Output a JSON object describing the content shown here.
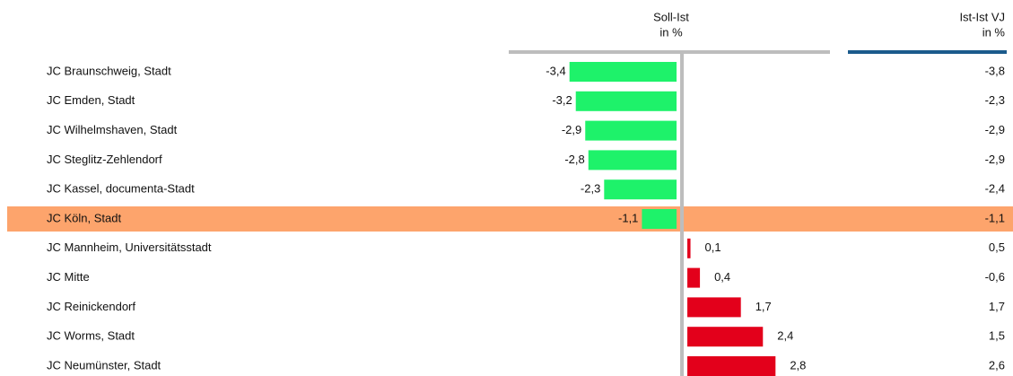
{
  "chart_data": {
    "type": "bar",
    "orientation": "horizontal",
    "categories": [
      "JC Braunschweig, Stadt",
      "JC Emden, Stadt",
      "JC Wilhelmshaven, Stadt",
      "JC Steglitz-Zehlendorf",
      "JC Kassel, documenta-Stadt",
      "JC Köln, Stadt",
      "JC Mannheim, Universitätsstadt",
      "JC Mitte",
      "JC Reinickendorf",
      "JC Worms, Stadt",
      "JC Neumünster, Stadt"
    ],
    "series": [
      {
        "name": [
          "Soll-Ist",
          "in %"
        ],
        "values": [
          -3.4,
          -3.2,
          -2.9,
          -2.8,
          -2.3,
          -1.1,
          0.1,
          0.4,
          1.7,
          2.4,
          2.8
        ],
        "value_labels": [
          "-3,4",
          "-3,2",
          "-2,9",
          "-2,8",
          "-2,3",
          "-1,1",
          "0,1",
          "0,4",
          "1,7",
          "2,4",
          "2,8"
        ],
        "colors": {
          "negative": "#1ef26a",
          "positive": "#e3001b"
        },
        "header_color": "#bdbdbd"
      },
      {
        "name": [
          "Ist-Ist VJ",
          "in %"
        ],
        "values": [
          -3.8,
          -2.3,
          -2.9,
          -2.9,
          -2.4,
          -1.1,
          0.5,
          -0.6,
          1.7,
          1.5,
          2.6
        ],
        "value_labels": [
          "-3,8",
          "-2,3",
          "-2,9",
          "-2,9",
          "-2,4",
          "-1,1",
          "0,5",
          "-0,6",
          "1,7",
          "1,5",
          "2,6"
        ],
        "header_color": "#1b5b8c"
      }
    ],
    "xlim": [
      -5.5,
      4.7
    ],
    "highlight_index": 5,
    "highlight_color": "#fda46c"
  }
}
